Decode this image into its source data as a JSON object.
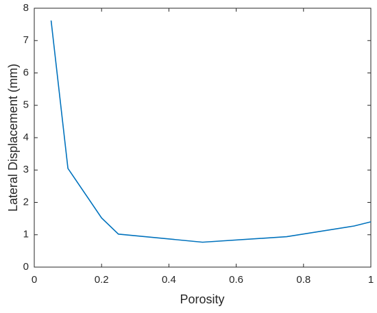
{
  "chart_data": {
    "type": "line",
    "x_label": "Porosity",
    "y_label": "Lateral Displacement (mm)",
    "x": [
      0.05,
      0.1,
      0.2,
      0.25,
      0.5,
      0.75,
      0.95,
      1.0
    ],
    "series": [
      {
        "color": "#0072bd",
        "values": [
          7.62,
          3.05,
          1.52,
          1.02,
          0.77,
          0.94,
          1.27,
          1.4
        ]
      }
    ],
    "xlim": [
      0,
      1
    ],
    "xticks": [
      0,
      0.2,
      0.4,
      0.6,
      0.8,
      1
    ],
    "ylim": [
      0,
      8
    ],
    "yticks": [
      0,
      1,
      2,
      3,
      4,
      5,
      6,
      7,
      8
    ],
    "grid": false
  }
}
